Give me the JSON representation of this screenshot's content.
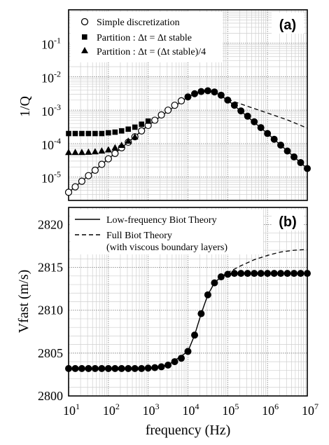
{
  "chart_data": [
    {
      "panel": "(a)",
      "type": "scatter",
      "xscale": "log",
      "yscale": "log",
      "xlim": [
        10,
        10000000
      ],
      "ylim": [
        2e-06,
        1
      ],
      "ylabel": "1/Q",
      "xticks": [
        "1",
        "2",
        "3",
        "4",
        "5",
        "6",
        "7"
      ],
      "yticks": [
        "-5",
        "-4",
        "-3",
        "-2",
        "-1"
      ],
      "grid": true,
      "legend_position": "top-left",
      "series": [
        {
          "name": "Simple discretization",
          "marker": "open-circle",
          "x": [
            10,
            14.7,
            21.5,
            31.6,
            46.4,
            68.1,
            100,
            147,
            215,
            316,
            464,
            681,
            1000,
            1470,
            2150,
            3160,
            4640,
            6810,
            10000,
            14700,
            21500,
            31600,
            46400,
            68100,
            100000,
            147000,
            215000,
            316000,
            464000,
            681000,
            1000000,
            1470000,
            2150000,
            3160000,
            4640000,
            6810000,
            10000000
          ],
          "y": [
            3.5e-06,
            5.1e-06,
            7.5e-06,
            1.1e-05,
            1.6e-05,
            2.4e-05,
            3.5e-05,
            5.1e-05,
            7.5e-05,
            0.00011,
            0.00016,
            0.00024,
            0.00035,
            0.0005,
            0.00072,
            0.001,
            0.0014,
            0.0019,
            0.0025,
            0.0031,
            0.0036,
            0.0038,
            0.0035,
            0.0028,
            0.002,
            0.0014,
            0.00095,
            0.00066,
            0.00045,
            0.0003,
            0.0002,
            0.000135,
            9e-05,
            6e-05,
            4e-05,
            2.7e-05,
            1.8e-05
          ]
        },
        {
          "name": "Partition : Δt = Δt stable",
          "marker": "filled-square",
          "x": [
            10,
            14.7,
            21.5,
            31.6,
            46.4,
            68.1,
            100,
            147,
            215,
            316,
            464,
            681,
            1000
          ],
          "y": [
            0.0002,
            0.0002,
            0.0002,
            0.0002,
            0.0002,
            0.0002,
            0.00021,
            0.00022,
            0.00024,
            0.00027,
            0.00031,
            0.00038,
            0.00047
          ]
        },
        {
          "name": "Partition : Δt = (Δt stable)/4",
          "marker": "filled-triangle",
          "x": [
            10,
            14.7,
            21.5,
            31.6,
            46.4,
            68.1,
            100,
            147,
            215,
            316,
            464
          ],
          "y": [
            5.5e-05,
            5.5e-05,
            5.5e-05,
            5.6e-05,
            5.8e-05,
            6.1e-05,
            6.6e-05,
            7.6e-05,
            9e-05,
            0.00012,
            0.00016
          ]
        },
        {
          "marker": "filled-circle",
          "x": [
            10000,
            14700,
            21500,
            31600,
            46400,
            68100,
            100000,
            147000,
            215000,
            316000,
            464000,
            681000,
            1000000,
            1470000,
            2150000,
            3160000,
            4640000,
            6810000,
            10000000
          ],
          "y": [
            0.0025,
            0.0031,
            0.0036,
            0.0038,
            0.0035,
            0.0028,
            0.002,
            0.0014,
            0.00095,
            0.00066,
            0.00045,
            0.0003,
            0.0002,
            0.000135,
            9e-05,
            6e-05,
            4e-05,
            2.7e-05,
            1.8e-05
          ]
        },
        {
          "line": "solid",
          "x": [
            10,
            100,
            1000,
            10000,
            21500,
            46400,
            100000,
            1000000,
            10000000
          ],
          "y": [
            3.5e-06,
            3.5e-05,
            0.00035,
            0.0025,
            0.0036,
            0.0035,
            0.002,
            0.0002,
            1.8e-05
          ]
        },
        {
          "line": "dashed",
          "x": [
            100000,
            316000,
            1000000,
            3160000,
            10000000
          ],
          "y": [
            0.0021,
            0.0013,
            0.00082,
            0.00051,
            0.00029
          ]
        }
      ]
    },
    {
      "panel": "(b)",
      "type": "line",
      "xscale": "log",
      "xlim": [
        10,
        10000000
      ],
      "ylim": [
        2800,
        2822
      ],
      "xlabel": "frequency  (Hz)",
      "ylabel": "Vfast  (m/s)",
      "xticks": [
        "1",
        "2",
        "3",
        "4",
        "5",
        "6",
        "7"
      ],
      "yticks": [
        "2800",
        "2805",
        "2810",
        "2815",
        "2820"
      ],
      "grid": true,
      "legend_position": "top",
      "series": [
        {
          "name": "Low-frequency Biot Theory",
          "line": "solid",
          "x": [
            10,
            100,
            1000,
            3160,
            10000,
            14700,
            21500,
            31600,
            46400,
            68100,
            100000,
            1000000,
            10000000
          ],
          "y": [
            2803.2,
            2803.2,
            2803.25,
            2803.6,
            2805.2,
            2807.1,
            2809.6,
            2811.8,
            2813.2,
            2813.9,
            2814.2,
            2814.3,
            2814.3
          ]
        },
        {
          "name": "Full Biot Theory",
          "line": "dashed",
          "x": [
            68100,
            100000,
            215000,
            464000,
            1000000,
            2150000,
            4640000,
            10000000
          ],
          "y": [
            2813.9,
            2814.4,
            2815.2,
            2815.9,
            2816.4,
            2816.8,
            2817.0,
            2817.1
          ]
        },
        {
          "marker": "filled-circle",
          "x": [
            10,
            14.7,
            21.5,
            31.6,
            46.4,
            68.1,
            100,
            147,
            215,
            316,
            464,
            681,
            1000,
            1470,
            2150,
            3160,
            4640,
            6810,
            10000,
            14700,
            21500,
            31600,
            46400,
            68100,
            100000,
            147000,
            215000,
            316000,
            464000,
            681000,
            1000000,
            1470000,
            2150000,
            3160000,
            4640000,
            6810000,
            10000000
          ],
          "y": [
            2803.2,
            2803.2,
            2803.2,
            2803.2,
            2803.2,
            2803.2,
            2803.2,
            2803.2,
            2803.2,
            2803.2,
            2803.2,
            2803.2,
            2803.25,
            2803.3,
            2803.4,
            2803.6,
            2804.0,
            2804.4,
            2805.2,
            2807.1,
            2809.6,
            2811.8,
            2813.2,
            2813.9,
            2814.2,
            2814.3,
            2814.3,
            2814.3,
            2814.3,
            2814.3,
            2814.3,
            2814.3,
            2814.3,
            2814.3,
            2814.3,
            2814.3,
            2814.3
          ]
        }
      ]
    }
  ],
  "legend_b_note": "(with viscous boundary layers)"
}
